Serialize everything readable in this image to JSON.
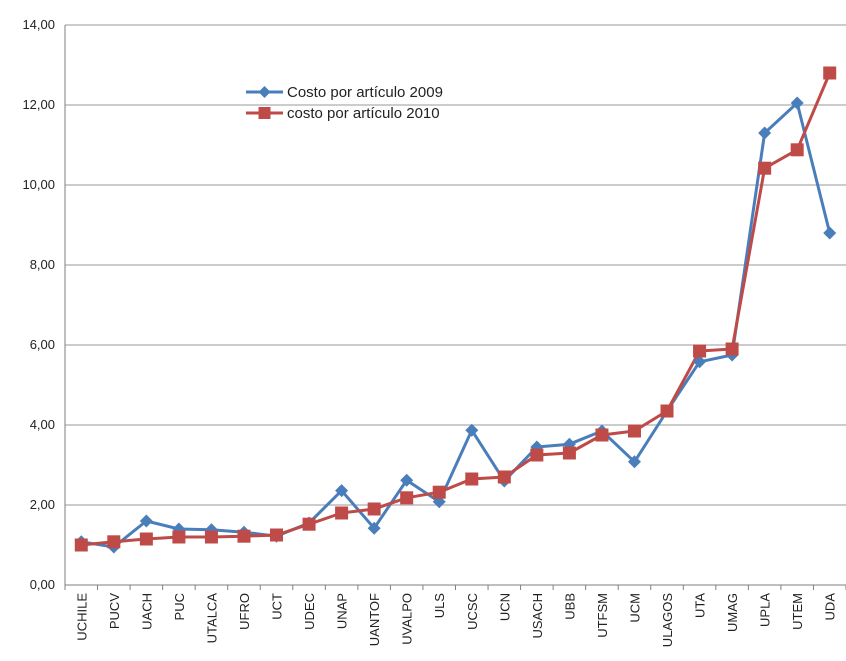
{
  "chart_data": {
    "type": "line",
    "title": "",
    "xlabel": "",
    "ylabel": "",
    "ylim": [
      0,
      14
    ],
    "y_ticks": [
      "0,00",
      "2,00",
      "4,00",
      "6,00",
      "8,00",
      "10,00",
      "12,00",
      "14,00"
    ],
    "grid": "horizontal",
    "legend_position": "top-center",
    "categories": [
      "UCHILE",
      "PUCV",
      "UACH",
      "PUC",
      "UTALCA",
      "UFRO",
      "UCT",
      "UDEC",
      "UNAP",
      "UANTOF",
      "UVALPO",
      "ULS",
      "UCSC",
      "UCN",
      "USACH",
      "UBB",
      "UTFSM",
      "UCM",
      "ULAGOS",
      "UTA",
      "UMAG",
      "UPLA",
      "UTEM",
      "UDA"
    ],
    "series": [
      {
        "name": "Costo por artículo 2009",
        "color": "#4a7ebb",
        "marker": "diamond",
        "values": [
          1.08,
          0.95,
          1.6,
          1.4,
          1.38,
          1.32,
          1.22,
          1.55,
          2.36,
          1.42,
          2.62,
          2.08,
          3.87,
          2.6,
          3.45,
          3.52,
          3.85,
          3.08,
          4.35,
          5.58,
          5.75,
          11.3,
          12.05,
          8.8
        ]
      },
      {
        "name": "costo por artículo 2010",
        "color": "#be4b48",
        "marker": "square",
        "values": [
          1.0,
          1.08,
          1.15,
          1.2,
          1.2,
          1.22,
          1.25,
          1.52,
          1.8,
          1.9,
          2.18,
          2.32,
          2.65,
          2.7,
          3.25,
          3.3,
          3.75,
          3.85,
          4.35,
          5.85,
          5.9,
          10.42,
          10.88,
          12.8
        ]
      }
    ]
  }
}
